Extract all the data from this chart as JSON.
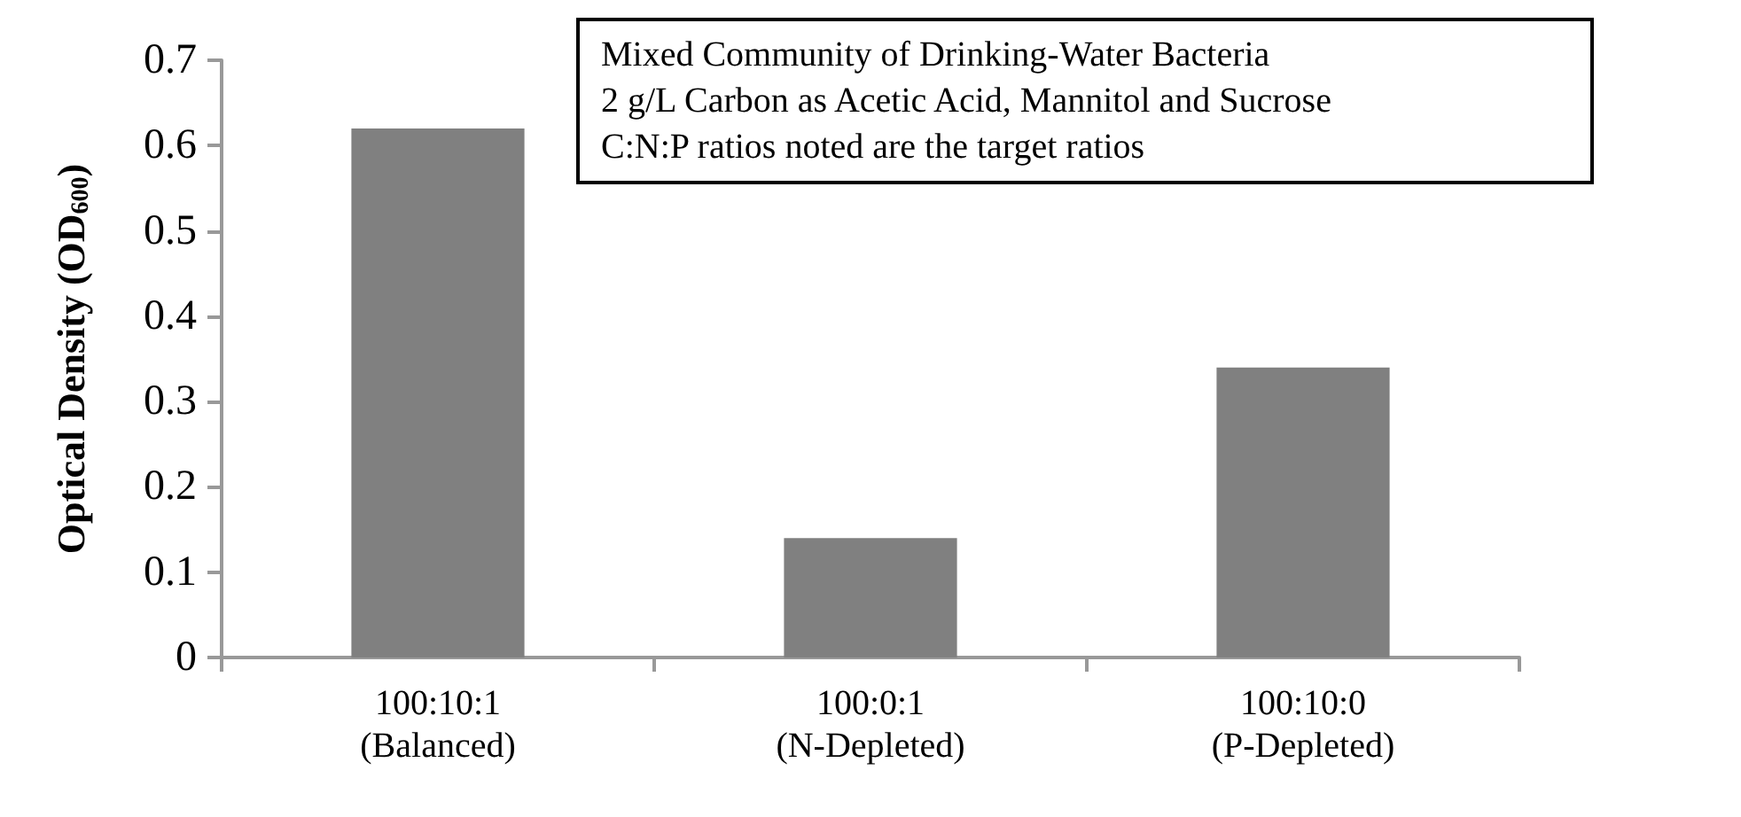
{
  "chart_data": {
    "type": "bar",
    "ylabel": "Optical Density (OD$_{600}$)",
    "categories": [
      "100:10:1\n(Balanced)",
      "100:0:1\n(N-Depleted)",
      "100:10:0\n(P-Depleted)"
    ],
    "values": [
      0.62,
      0.14,
      0.34
    ],
    "color": "#808080",
    "ylim": [
      0,
      0.7
    ],
    "yticks": [
      0,
      0.1,
      0.2,
      0.3,
      0.4,
      0.5,
      0.6,
      0.7
    ],
    "grid": false,
    "annotations": [
      "Mixed Community of Drinking-Water Bacteria\n2 g/L Carbon as Acetic Acid, Mannitol and Sucrose\nC:N:P ratios noted are the target ratios"
    ]
  }
}
